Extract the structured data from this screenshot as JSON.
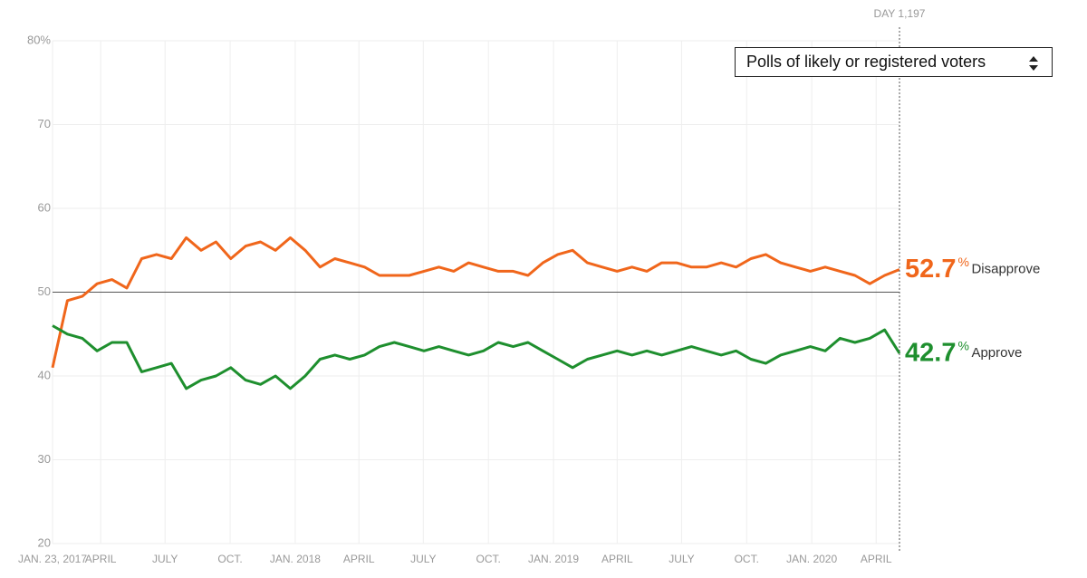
{
  "chart_data": {
    "type": "line",
    "x": [
      0,
      21,
      42,
      63,
      84,
      105,
      126,
      147,
      168,
      189,
      210,
      231,
      252,
      273,
      294,
      315,
      336,
      357,
      378,
      399,
      420,
      441,
      462,
      483,
      504,
      525,
      546,
      567,
      588,
      609,
      630,
      651,
      672,
      693,
      714,
      735,
      756,
      777,
      798,
      819,
      840,
      861,
      882,
      903,
      924,
      945,
      966,
      987,
      1008,
      1029,
      1050,
      1071,
      1092,
      1113,
      1134,
      1155,
      1176,
      1197
    ],
    "xlim": [
      0,
      1197
    ],
    "xticks": [
      {
        "value": 0,
        "label": "JAN. 23, 2017"
      },
      {
        "value": 68,
        "label": "APRIL"
      },
      {
        "value": 159,
        "label": "JULY"
      },
      {
        "value": 251,
        "label": "OCT."
      },
      {
        "value": 343,
        "label": "JAN. 2018"
      },
      {
        "value": 433,
        "label": "APRIL"
      },
      {
        "value": 524,
        "label": "JULY"
      },
      {
        "value": 616,
        "label": "OCT."
      },
      {
        "value": 708,
        "label": "JAN. 2019"
      },
      {
        "value": 798,
        "label": "APRIL"
      },
      {
        "value": 889,
        "label": "JULY"
      },
      {
        "value": 981,
        "label": "OCT."
      },
      {
        "value": 1073,
        "label": "JAN. 2020"
      },
      {
        "value": 1164,
        "label": "APRIL"
      }
    ],
    "ylim": [
      20,
      80
    ],
    "yticks": [
      20,
      30,
      40,
      50,
      60,
      70,
      {
        "value": 80,
        "label": "80%"
      }
    ],
    "grid": true,
    "reference_line": 50,
    "marker": {
      "value": 1197,
      "label": "DAY 1,197"
    },
    "end_label_suffix": "%",
    "series": [
      {
        "name": "Disapprove",
        "color": "#f0661b",
        "values": [
          41,
          49,
          49.5,
          51,
          51.5,
          50.5,
          54,
          54.5,
          54,
          56.5,
          55,
          56,
          54,
          55.5,
          56,
          55,
          56.5,
          55,
          53,
          54,
          53.5,
          53,
          52,
          52,
          52,
          52.5,
          53,
          52.5,
          53.5,
          53,
          52.5,
          52.5,
          52,
          53.5,
          54.5,
          55,
          53.5,
          53,
          52.5,
          53,
          52.5,
          53.5,
          53.5,
          53,
          53,
          53.5,
          53,
          54,
          54.5,
          53.5,
          53,
          52.5,
          53,
          52.5,
          52,
          51,
          52,
          52.7
        ]
      },
      {
        "name": "Approve",
        "color": "#1e8f2e",
        "values": [
          46,
          45,
          44.5,
          43,
          44,
          44,
          40.5,
          41,
          41.5,
          38.5,
          39.5,
          40,
          41,
          39.5,
          39,
          40,
          38.5,
          40,
          42,
          42.5,
          42,
          42.5,
          43.5,
          44,
          43.5,
          43,
          43.5,
          43,
          42.5,
          43,
          44,
          43.5,
          44,
          43,
          42,
          41,
          42,
          42.5,
          43,
          42.5,
          43,
          42.5,
          43,
          43.5,
          43,
          42.5,
          43,
          42,
          41.5,
          42.5,
          43,
          43.5,
          43,
          44.5,
          44,
          44.5,
          45.5,
          42.7
        ]
      }
    ]
  },
  "dropdown": {
    "label": "Polls of likely or registered voters"
  }
}
